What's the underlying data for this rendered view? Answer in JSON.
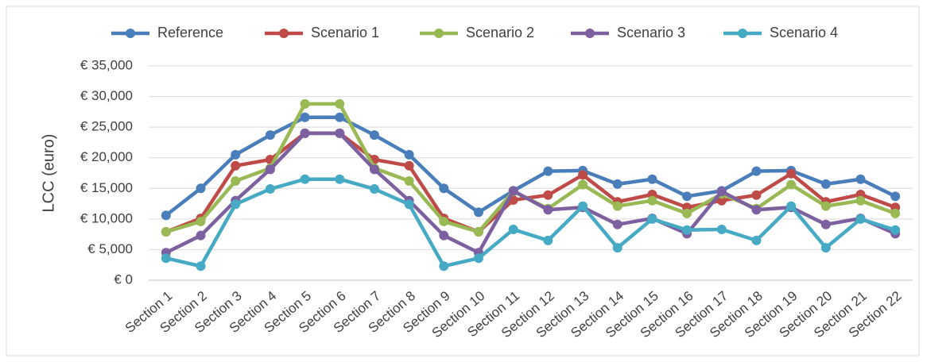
{
  "chart_data": {
    "type": "line",
    "y_label": "LCC (euro)",
    "categories": [
      "Section 1",
      "Section 2",
      "Section 3",
      "Section 4",
      "Section 5",
      "Section 6",
      "Section 7",
      "Section 8",
      "Section 9",
      "Section 10",
      "Section 11",
      "Section 12",
      "Section 13",
      "Section 14",
      "Section 15",
      "Section 16",
      "Section 17",
      "Section 18",
      "Section 19",
      "Section 20",
      "Section 21",
      "Section 22"
    ],
    "series": [
      {
        "name": "Reference",
        "color": "#4a7ebb",
        "values": [
          10600,
          15000,
          20500,
          23700,
          26600,
          26600,
          23700,
          20500,
          15000,
          11100,
          14600,
          17800,
          17900,
          15700,
          16500,
          13700,
          14600,
          17800,
          17900,
          15700,
          16500,
          13700
        ]
      },
      {
        "name": "Scenario 1",
        "color": "#be4b48",
        "values": [
          7900,
          10100,
          18700,
          19700,
          24000,
          24000,
          19700,
          18700,
          10100,
          7900,
          13100,
          13900,
          17200,
          12800,
          14000,
          11900,
          13000,
          13900,
          17400,
          12800,
          14000,
          11900
        ]
      },
      {
        "name": "Scenario 2",
        "color": "#98b954",
        "values": [
          7900,
          9600,
          16200,
          18300,
          28800,
          28800,
          18300,
          16200,
          9600,
          7900,
          14500,
          11700,
          15600,
          12100,
          13000,
          10900,
          14100,
          11700,
          15600,
          12100,
          13000,
          10900
        ]
      },
      {
        "name": "Scenario 3",
        "color": "#7d60a0",
        "values": [
          4500,
          7300,
          13000,
          18100,
          24000,
          24000,
          18100,
          13000,
          7300,
          4500,
          14600,
          11500,
          11900,
          9100,
          10100,
          7600,
          14500,
          11500,
          11900,
          9100,
          10100,
          7600
        ]
      },
      {
        "name": "Scenario 4",
        "color": "#46aac5",
        "values": [
          3600,
          2300,
          12400,
          14900,
          16500,
          16500,
          14900,
          12400,
          2300,
          3600,
          8300,
          6500,
          12100,
          5300,
          10000,
          8200,
          8300,
          6500,
          12100,
          5300,
          10000,
          8200
        ]
      }
    ],
    "ylim": [
      0,
      35000
    ],
    "yticks": [
      {
        "value": 0,
        "label": "€ 0"
      },
      {
        "value": 5000,
        "label": "€ 5,000"
      },
      {
        "value": 10000,
        "label": "€ 10,000"
      },
      {
        "value": 15000,
        "label": "€ 15,000"
      },
      {
        "value": 20000,
        "label": "€ 20,000"
      },
      {
        "value": 25000,
        "label": "€ 25,000"
      },
      {
        "value": 30000,
        "label": "€ 30,000"
      },
      {
        "value": 35000,
        "label": "€ 35,000"
      }
    ],
    "grid": true,
    "legend": "top"
  }
}
